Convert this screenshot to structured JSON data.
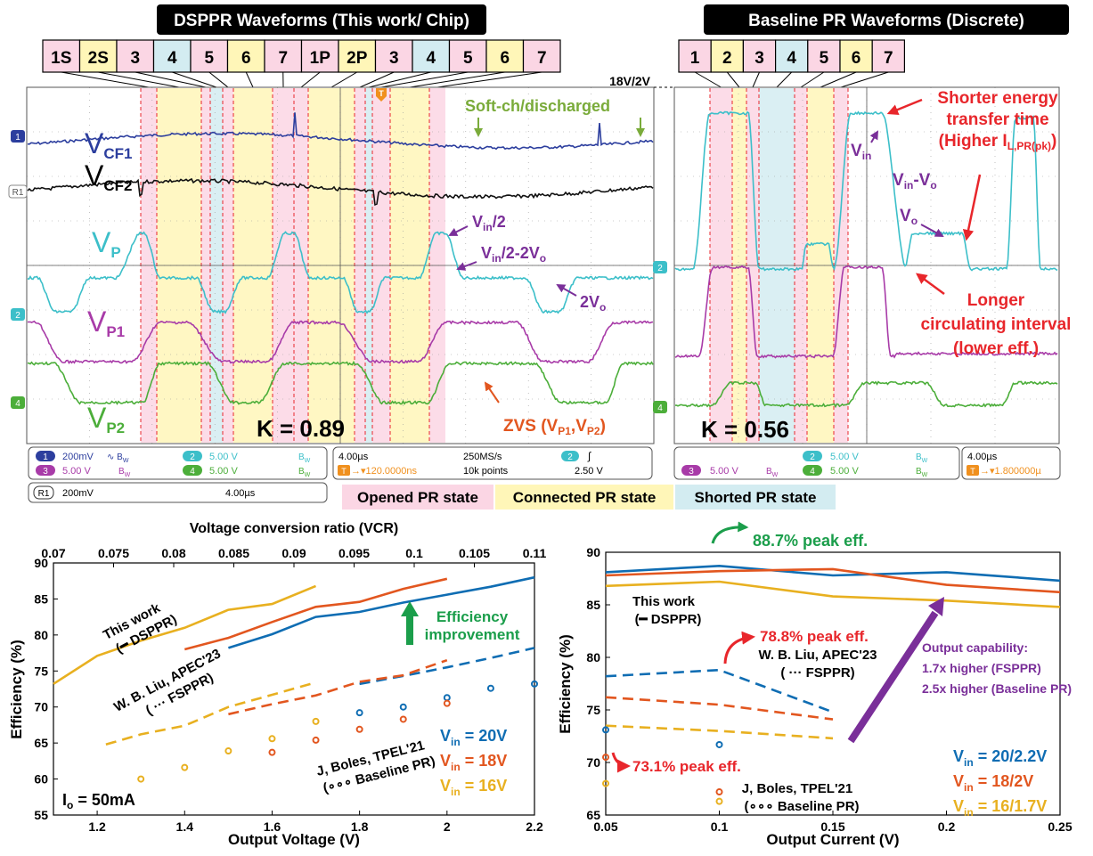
{
  "colors": {
    "opened": "#fbd6e4",
    "connected": "#fff6b8",
    "shorted": "#d3ecf1",
    "ch1": "#2c3e9e",
    "ch2": "#3cbfc9",
    "ch3": "#a83ba8",
    "ch4": "#4cae3a",
    "r1": "#111111",
    "red": "#e8262b",
    "green": "#1b9e4b",
    "purple": "#7a2f99",
    "blue": "#0f6db3",
    "orange": "#e2561f",
    "yellow": "#e8b020",
    "scopeOrange": "#f0901e"
  },
  "scope_left": {
    "title": "DSPPR Waveforms (This work/ Chip)",
    "states": [
      "1S",
      "2S",
      "3",
      "4",
      "5",
      "6",
      "7",
      "1P",
      "2P",
      "3",
      "4",
      "5",
      "6",
      "7"
    ],
    "state_kinds": [
      "opened",
      "connected",
      "opened",
      "shorted",
      "opened",
      "connected",
      "opened",
      "opened",
      "connected",
      "opened",
      "shorted",
      "opened",
      "connected",
      "opened"
    ],
    "label_vcf1": "V",
    "sub_vcf1": "CF1",
    "label_vcf2": "V",
    "sub_vcf2": "CF2",
    "label_vp": "V",
    "sub_vp": "P",
    "label_vp1": "V",
    "sub_vp1": "P1",
    "label_vp2": "V",
    "sub_vp2": "P2",
    "soft": "Soft-ch/discharged",
    "ann_vin2": "V",
    "ann_vin2_sub": "in",
    "ann_vin2_rest": "/2",
    "ann_vin2_2vo": "V",
    "ann_vin2_2vo_sub": "in",
    "ann_vin2_2vo_rest": "/2-2V",
    "ann_vin2_2vo_sub2": "o",
    "ann_2vo": "2V",
    "ann_2vo_sub": "o",
    "zvs": "ZVS (V",
    "zvs_sub1": "P1",
    "zvs_mid": ",V",
    "zvs_sub2": "P2",
    "zvs_end": ")",
    "k": "K = 0.89",
    "scale": "18V/2V",
    "markers": [
      "1",
      "R1",
      "2",
      "4"
    ],
    "trigger": "T",
    "status": {
      "ch1": "1",
      "ch1_v": "200mV",
      "bw1": "∿ B",
      "bw1_sub": "W",
      "ch2": "2",
      "ch2_v": "5.00 V",
      "bw2": "B",
      "bw2_sub": "W",
      "ch3": "3",
      "ch3_v": "5.00 V",
      "bw3": "B",
      "bw3_sub": "W",
      "ch4": "4",
      "ch4_v": "5.00 V",
      "bw4": "B",
      "bw4_sub": "W",
      "time": "4.00µs",
      "rate": "250MS/s",
      "trig_ch": "2",
      "trig_sym": "∫",
      "trig_pos": "→▾120.0000ns",
      "points": "10k points",
      "trig_level": "2.50 V",
      "r1": "R1",
      "r1_v": "200mV",
      "r1_time": "4.00µs"
    }
  },
  "scope_right": {
    "title": "Baseline PR Waveforms (Discrete)",
    "states": [
      "1",
      "2",
      "3",
      "4",
      "5",
      "6",
      "7"
    ],
    "state_kinds": [
      "opened",
      "connected",
      "opened",
      "shorted",
      "opened",
      "connected",
      "opened"
    ],
    "shorter": [
      "Shorter energy",
      "transfer time"
    ],
    "higher": "(Higher I",
    "higher_sub": "L,PR(pk)",
    "higher_end": ")",
    "vin": "V",
    "vin_sub": "in",
    "vinvo": "V",
    "vinvo_sub": "in",
    "vinvo_mid": "-V",
    "vinvo_sub2": "o",
    "vo": "V",
    "vo_sub": "o",
    "longer": [
      "Longer",
      "circulating interval",
      "(lower eff.)"
    ],
    "k": "K = 0.56",
    "marker_2": "2",
    "marker_4": "4",
    "status": {
      "ch2": "2",
      "ch2_v": "5.00 V",
      "bw2": "B",
      "bw2_sub": "W",
      "ch3": "3",
      "ch3_v": "5.00 V",
      "bw3": "B",
      "bw3_sub": "W",
      "ch4": "4",
      "ch4_v": "5.00 V",
      "bw4": "B",
      "bw4_sub": "W",
      "time": "4.00µs",
      "trig_pos": "→▾1.800000µ"
    }
  },
  "legend_states": {
    "opened": "Opened PR state",
    "connected": "Connected PR state",
    "shorted": "Shorted PR state"
  },
  "chart_data": [
    {
      "type": "line",
      "xlabel": "Output Voltage (V)",
      "ylabel": "Efficiency (%)",
      "top_xlabel": "Voltage conversion ratio (VCR)",
      "xlim": [
        1.1,
        2.2
      ],
      "ylim": [
        55,
        90
      ],
      "x_ticks": [
        1.2,
        1.4,
        1.6,
        1.8,
        2,
        2.2
      ],
      "y_ticks": [
        55,
        60,
        65,
        70,
        75,
        80,
        85,
        90
      ],
      "top_ticks": [
        "0.07",
        "0.075",
        "0.08",
        "0.085",
        "0.09",
        "0.095",
        "0.1",
        "0.105",
        "0.11"
      ],
      "series": [
        {
          "name": "V",
          "sub": "in",
          "rest": " = 20V",
          "color": "blue",
          "group": "DSPPR",
          "x": [
            1.5,
            1.6,
            1.7,
            1.8,
            1.9,
            2.0,
            2.1,
            2.2
          ],
          "values": [
            78.2,
            80.1,
            82.5,
            83.2,
            84.5,
            85.6,
            86.7,
            88.0
          ]
        },
        {
          "name": "V",
          "sub": "in",
          "rest": " = 18V",
          "color": "orange",
          "group": "DSPPR",
          "x": [
            1.4,
            1.5,
            1.6,
            1.7,
            1.8,
            1.9,
            2.0
          ],
          "values": [
            78.0,
            79.6,
            81.8,
            83.9,
            84.6,
            86.4,
            87.8
          ]
        },
        {
          "name": "V",
          "sub": "in",
          "rest": " = 16V",
          "color": "yellow",
          "group": "DSPPR",
          "x": [
            1.1,
            1.2,
            1.3,
            1.4,
            1.5,
            1.6,
            1.7
          ],
          "values": [
            73.2,
            77.1,
            79.2,
            81.0,
            83.5,
            84.3,
            86.8
          ]
        },
        {
          "color": "blue",
          "group": "FSPPR",
          "x": [
            1.8,
            1.9,
            2.0,
            2.1,
            2.2
          ],
          "values": [
            73.2,
            74.3,
            75.5,
            76.8,
            78.2
          ]
        },
        {
          "color": "orange",
          "group": "FSPPR",
          "x": [
            1.5,
            1.6,
            1.7,
            1.8,
            1.9,
            2.0
          ],
          "values": [
            69.0,
            70.4,
            71.6,
            73.5,
            74.4,
            76.5
          ]
        },
        {
          "color": "yellow",
          "group": "FSPPR",
          "x": [
            1.22,
            1.3,
            1.4,
            1.5,
            1.6,
            1.7
          ],
          "values": [
            64.8,
            66.2,
            67.4,
            70.0,
            71.7,
            73.4
          ]
        },
        {
          "color": "blue",
          "group": "Baseline",
          "x": [
            1.8,
            1.9,
            2.0,
            2.1,
            2.2
          ],
          "values": [
            69.2,
            70.0,
            71.3,
            72.6,
            73.2
          ]
        },
        {
          "color": "orange",
          "group": "Baseline",
          "x": [
            1.6,
            1.7,
            1.8,
            1.9,
            2.0
          ],
          "values": [
            63.7,
            65.4,
            66.9,
            68.3,
            70.5
          ]
        },
        {
          "color": "yellow",
          "group": "Baseline",
          "x": [
            1.3,
            1.4,
            1.5,
            1.6,
            1.7
          ],
          "values": [
            60.0,
            61.6,
            63.9,
            65.6,
            68.0
          ]
        }
      ],
      "annotations": {
        "this_work": [
          "This work",
          "(━ DSPPR)"
        ],
        "liu": [
          "W. B. Liu, APEC'23",
          "( ··· FSPPR)"
        ],
        "boles": [
          "J, Boles, TPEL'21",
          "(∘∘∘ Baseline PR)"
        ],
        "improvement": [
          "Efficiency",
          "improvement"
        ],
        "io": "I",
        "io_sub": "o",
        "io_rest": " = 50mA"
      }
    },
    {
      "type": "line",
      "xlabel": "Output Current (V)",
      "ylabel": "Efficiency (%)",
      "xlim": [
        0.05,
        0.25
      ],
      "ylim": [
        65,
        90
      ],
      "x_ticks": [
        0.05,
        0.1,
        0.15,
        0.2,
        0.25
      ],
      "y_ticks": [
        65,
        70,
        75,
        80,
        85,
        90
      ],
      "series": [
        {
          "name": "V",
          "sub": "in",
          "rest": " = 20/2.2V",
          "color": "blue",
          "group": "DSPPR",
          "x": [
            0.05,
            0.1,
            0.15,
            0.2,
            0.25
          ],
          "values": [
            88.1,
            88.7,
            87.8,
            88.1,
            87.3
          ]
        },
        {
          "name": "V",
          "sub": "in",
          "rest": " = 18/2V",
          "color": "orange",
          "group": "DSPPR",
          "x": [
            0.05,
            0.1,
            0.15,
            0.2,
            0.25
          ],
          "values": [
            87.8,
            88.2,
            88.4,
            86.9,
            86.2
          ]
        },
        {
          "name": "V",
          "sub": "in",
          "rest": " = 16/1.7V",
          "color": "yellow",
          "group": "DSPPR",
          "x": [
            0.05,
            0.1,
            0.15,
            0.2,
            0.25
          ],
          "values": [
            86.8,
            87.2,
            85.8,
            85.4,
            84.8
          ]
        },
        {
          "color": "blue",
          "group": "FSPPR",
          "x": [
            0.05,
            0.1,
            0.15
          ],
          "values": [
            78.2,
            78.8,
            74.8
          ]
        },
        {
          "color": "orange",
          "group": "FSPPR",
          "x": [
            0.05,
            0.1,
            0.15
          ],
          "values": [
            76.2,
            75.5,
            74.1
          ]
        },
        {
          "color": "yellow",
          "group": "FSPPR",
          "x": [
            0.05,
            0.1,
            0.15
          ],
          "values": [
            73.5,
            73.0,
            72.3
          ]
        },
        {
          "color": "blue",
          "group": "Baseline",
          "x": [
            0.05,
            0.1
          ],
          "values": [
            73.1,
            71.7
          ]
        },
        {
          "color": "orange",
          "group": "Baseline",
          "x": [
            0.05,
            0.1
          ],
          "values": [
            70.5,
            67.2
          ]
        },
        {
          "color": "yellow",
          "group": "Baseline",
          "x": [
            0.05,
            0.1
          ],
          "values": [
            68.0,
            66.3
          ]
        }
      ],
      "annotations": {
        "peak_dsppr": "88.7% peak eff.",
        "peak_fsppr": "78.8% peak eff.",
        "peak_base": "73.1% peak eff.",
        "this_work": [
          "This work",
          "(━ DSPPR)"
        ],
        "liu": [
          "W. B. Liu, APEC'23",
          "( ··· FSPPR)"
        ],
        "boles": [
          "J, Boles, TPEL'21",
          "(∘∘∘ Baseline PR)"
        ],
        "capability": [
          "Output capability:",
          "1.7x higher  (FSPPR)",
          "2.5x higher (Baseline PR)"
        ]
      }
    }
  ]
}
